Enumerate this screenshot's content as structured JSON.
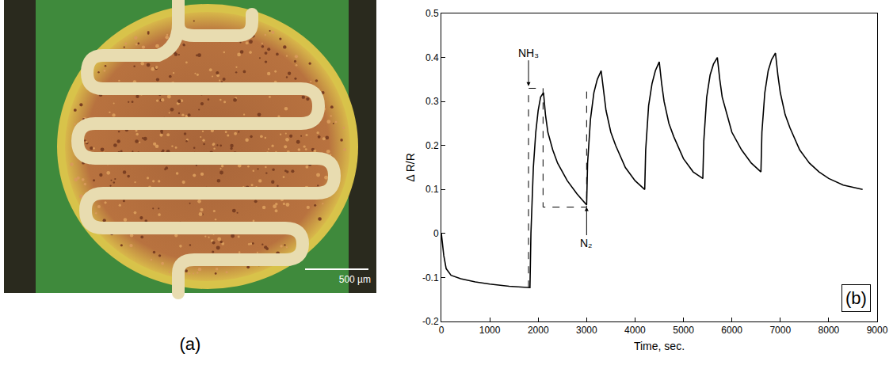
{
  "panel_a": {
    "label": "(a)",
    "scale_bar": "500 µm"
  },
  "chart_data": {
    "type": "line",
    "panel_label": "(b)",
    "x_label": "Time, sec.",
    "y_label": "Δ R/R",
    "xlim": [
      0,
      9000
    ],
    "xticks": [
      0,
      1000,
      2000,
      3000,
      4000,
      5000,
      6000,
      7000,
      8000,
      9000
    ],
    "ylim": [
      -0.2,
      0.5
    ],
    "yticks": [
      -0.2,
      -0.1,
      0,
      0.1,
      0.2,
      0.3,
      0.4,
      0.5
    ],
    "grid": false,
    "series": [
      {
        "color": "#000000",
        "line_style": "solid",
        "x": [
          0,
          50,
          100,
          200,
          400,
          700,
          1000,
          1400,
          1830,
          1850,
          1900,
          1950,
          2000,
          2050,
          2110,
          2150,
          2200,
          2300,
          2400,
          2600,
          2800,
          3000,
          3020,
          3080,
          3150,
          3220,
          3300,
          3350,
          3400,
          3500,
          3600,
          3800,
          4000,
          4200,
          4220,
          4280,
          4350,
          4420,
          4500,
          4550,
          4600,
          4700,
          4800,
          5000,
          5200,
          5400,
          5420,
          5480,
          5550,
          5620,
          5700,
          5750,
          5800,
          5900,
          6000,
          6200,
          6400,
          6600,
          6620,
          6680,
          6750,
          6820,
          6900,
          6950,
          7000,
          7100,
          7200,
          7400,
          7600,
          7800,
          8000,
          8300,
          8700
        ],
        "values": [
          0,
          -0.05,
          -0.08,
          -0.095,
          -0.103,
          -0.11,
          -0.115,
          -0.12,
          -0.123,
          0.0,
          0.15,
          0.23,
          0.28,
          0.31,
          0.32,
          0.27,
          0.23,
          0.19,
          0.16,
          0.12,
          0.09,
          0.065,
          0.16,
          0.26,
          0.32,
          0.35,
          0.37,
          0.32,
          0.28,
          0.23,
          0.2,
          0.15,
          0.12,
          0.1,
          0.19,
          0.29,
          0.34,
          0.37,
          0.39,
          0.34,
          0.3,
          0.25,
          0.22,
          0.17,
          0.14,
          0.125,
          0.21,
          0.31,
          0.36,
          0.385,
          0.4,
          0.35,
          0.31,
          0.27,
          0.23,
          0.19,
          0.16,
          0.14,
          0.23,
          0.32,
          0.37,
          0.395,
          0.41,
          0.36,
          0.32,
          0.27,
          0.24,
          0.19,
          0.16,
          0.14,
          0.125,
          0.11,
          0.1
        ]
      },
      {
        "color": "#000000",
        "line_style": "dash",
        "x": [
          1800,
          1800,
          2100,
          2100,
          3000,
          3000
        ],
        "values": [
          -0.123,
          0.33,
          0.33,
          0.06,
          0.06,
          0.335
        ]
      }
    ],
    "annotations": [
      {
        "text": "NH₃",
        "x": 1800,
        "y": 0.335
      },
      {
        "text": "N₂",
        "x": 3000,
        "y": 0.06
      }
    ]
  }
}
